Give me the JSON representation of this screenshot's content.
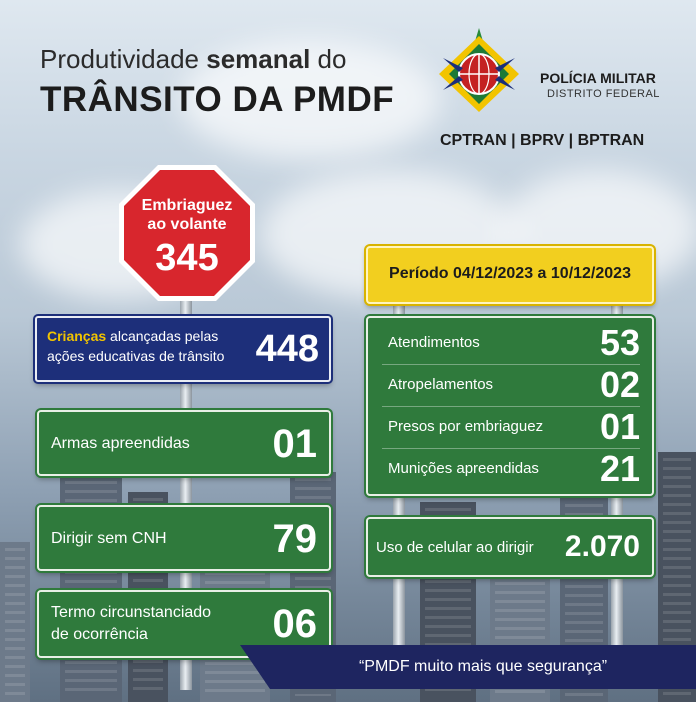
{
  "header": {
    "title_line1_pre": "Produtividade ",
    "title_line1_bold": "semanal",
    "title_line1_post": " do",
    "title_line2": "TRÂNSITO DA PMDF"
  },
  "org": {
    "name": "POLÍCIA MILITAR",
    "subtitle": "DISTRITO FEDERAL",
    "units": "CPTRAN | BPRV | BPTRAN"
  },
  "stop_sign": {
    "line1": "Embriaguez",
    "line2": "ao volante",
    "value": "345"
  },
  "children_sign": {
    "highlight": "Crianças",
    "line1_rest": " alcançadas pelas",
    "line2": "ações educativas de trânsito",
    "value": "448"
  },
  "period": "Período 04/12/2023 a 10/12/2023",
  "left_signs": [
    {
      "label": "Armas apreendidas",
      "value": "01"
    },
    {
      "label": "Dirigir sem CNH",
      "value": "79"
    },
    {
      "label_line1": "Termo circunstanciado",
      "label_line2": "de ocorrência",
      "value": "06"
    }
  ],
  "right_stats": [
    {
      "label": "Atendimentos",
      "value": "53"
    },
    {
      "label": "Atropelamentos",
      "value": "02"
    },
    {
      "label": "Presos por embriaguez",
      "value": "01"
    },
    {
      "label": "Munições apreendidas",
      "value": "21"
    }
  ],
  "cellphone": {
    "label": "Uso de celular ao dirigir",
    "value": "2.070"
  },
  "slogan": "“PMDF muito mais que segurança”",
  "colors": {
    "green_sign": "#2f7a3c",
    "blue_sign": "#1d2f7a",
    "yellow_sign": "#f2cf1f",
    "stop_red": "#d8262d",
    "banner": "#1e2560"
  },
  "icons": [
    "pmdf-seal-icon",
    "stop-sign-icon"
  ]
}
